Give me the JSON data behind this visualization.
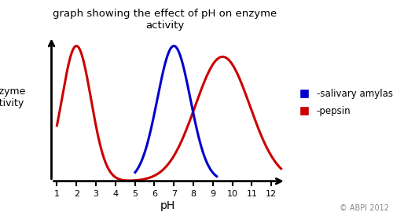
{
  "title": "graph showing the effect of pH on enzyme\nactivity",
  "xlabel": "pH",
  "ylabel": "enzyme\nactivity",
  "background_color": "#ffffff",
  "x_ticks": [
    1,
    2,
    3,
    4,
    5,
    6,
    7,
    8,
    9,
    10,
    11,
    12
  ],
  "pepsin_color": "#cc0000",
  "amylase_color": "#0000cc",
  "pepsin_label": "-pepsin",
  "amylase_label": "-salivary amylase",
  "copyright": "© ABPI 2012",
  "linewidth": 2.2,
  "pepsin_peak1_mu": 2.0,
  "pepsin_peak1_sigma": 0.75,
  "pepsin_peak1_amp": 1.0,
  "pepsin_peak2_mu": 9.5,
  "pepsin_peak2_sigma": 1.4,
  "pepsin_peak2_amp": 0.92,
  "amylase_mu": 7.0,
  "amylase_sigma": 0.85,
  "amylase_amp": 1.0
}
